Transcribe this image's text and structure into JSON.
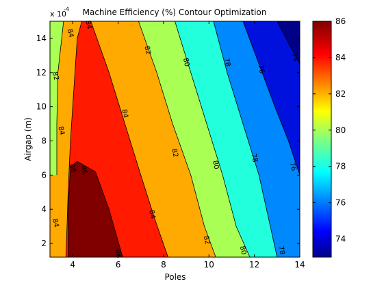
{
  "chart_data": {
    "type": "contour",
    "title": "Machine Efficiency (%) Contour Optimization",
    "xlabel": "Poles",
    "ylabel": "Airgap (m)",
    "y_exponent_label": "x 10",
    "y_exponent": "-4",
    "xlim": [
      3,
      14
    ],
    "ylim": [
      1.2,
      15
    ],
    "x_ticks": [
      "4",
      "6",
      "8",
      "10",
      "12",
      "14"
    ],
    "y_ticks": [
      "2",
      "4",
      "6",
      "8",
      "10",
      "12",
      "14"
    ],
    "colorbar": {
      "range": [
        73,
        86
      ],
      "ticks": [
        "74",
        "76",
        "78",
        "80",
        "82",
        "84",
        "86"
      ]
    },
    "levels": [
      {
        "value": 86,
        "color": "#800000"
      },
      {
        "value": 84,
        "color": "#ff1a00"
      },
      {
        "value": 82,
        "color": "#ffaa00"
      },
      {
        "value": 80,
        "color": "#aaff55"
      },
      {
        "value": 78,
        "color": "#22ffdd"
      },
      {
        "value": 76,
        "color": "#0088ff"
      },
      {
        "value": 74,
        "color": "#0010dd"
      },
      {
        "value": 73,
        "color": "#000088"
      }
    ],
    "contour_lines": [
      {
        "level": 84,
        "points": [
          [
            3.7,
            1.2
          ],
          [
            3.75,
            3
          ],
          [
            3.8,
            5
          ],
          [
            3.9,
            8
          ],
          [
            4,
            10
          ],
          [
            4.1,
            12
          ],
          [
            4.2,
            14
          ],
          [
            4.4,
            15
          ]
        ]
      },
      {
        "level": 84,
        "points": [
          [
            4.8,
            15
          ],
          [
            5.6,
            12
          ],
          [
            6.3,
            9
          ],
          [
            7,
            6
          ],
          [
            7.6,
            3.5
          ],
          [
            8.2,
            1.2
          ]
        ]
      },
      {
        "level": 86,
        "points": [
          [
            3.8,
            1.2
          ],
          [
            3.8,
            4
          ],
          [
            3.9,
            6.5
          ],
          [
            4.2,
            6.8
          ],
          [
            5,
            6.2
          ],
          [
            5.6,
            4
          ],
          [
            6.2,
            1.2
          ]
        ]
      },
      {
        "level": 82,
        "points": [
          [
            3.3,
            6
          ],
          [
            3.3,
            9
          ],
          [
            3.35,
            12
          ],
          [
            3.6,
            15
          ]
        ]
      },
      {
        "level": 82,
        "points": [
          [
            6.9,
            15
          ],
          [
            7.7,
            12
          ],
          [
            8.4,
            9
          ],
          [
            9.2,
            6
          ],
          [
            9.8,
            3
          ],
          [
            10.3,
            1.2
          ]
        ]
      },
      {
        "level": 80,
        "points": [
          [
            8.5,
            15
          ],
          [
            9.2,
            12
          ],
          [
            9.9,
            9
          ],
          [
            10.6,
            6
          ],
          [
            11.2,
            3
          ],
          [
            11.8,
            1.2
          ]
        ]
      },
      {
        "level": 78,
        "points": [
          [
            10.2,
            15
          ],
          [
            10.8,
            12
          ],
          [
            11.5,
            9
          ],
          [
            12.2,
            6
          ],
          [
            12.7,
            3
          ],
          [
            13,
            1.2
          ]
        ]
      },
      {
        "level": 76,
        "points": [
          [
            11.5,
            15
          ],
          [
            12.2,
            12.5
          ],
          [
            12.9,
            10
          ],
          [
            13.5,
            8
          ],
          [
            14,
            6
          ]
        ]
      },
      {
        "level": 74,
        "points": [
          [
            13,
            15
          ],
          [
            13.6,
            13.5
          ],
          [
            14,
            12.5
          ]
        ]
      }
    ],
    "contour_labels": [
      {
        "text": "84",
        "x": 3.9,
        "y": 14.3
      },
      {
        "text": "84",
        "x": 4.7,
        "y": 14.8
      },
      {
        "text": "82",
        "x": 3.25,
        "y": 11.8
      },
      {
        "text": "84",
        "x": 3.5,
        "y": 8.6
      },
      {
        "text": "84",
        "x": 6.3,
        "y": 9.6
      },
      {
        "text": "84",
        "x": 7.5,
        "y": 3.7
      },
      {
        "text": "84",
        "x": 3.25,
        "y": 3.2
      },
      {
        "text": "86",
        "x": 4,
        "y": 6.4
      },
      {
        "text": "86",
        "x": 4.5,
        "y": 6.3
      },
      {
        "text": "86",
        "x": 6,
        "y": 1.4
      },
      {
        "text": "82",
        "x": 7.3,
        "y": 13.3
      },
      {
        "text": "82",
        "x": 8.5,
        "y": 7.3
      },
      {
        "text": "82",
        "x": 9.9,
        "y": 2.2
      },
      {
        "text": "80",
        "x": 9,
        "y": 12.6
      },
      {
        "text": "80",
        "x": 10.3,
        "y": 6.6
      },
      {
        "text": "80",
        "x": 11.5,
        "y": 1.6
      },
      {
        "text": "78",
        "x": 10.8,
        "y": 12.6
      },
      {
        "text": "78",
        "x": 12,
        "y": 7
      },
      {
        "text": "78",
        "x": 13.2,
        "y": 1.6
      },
      {
        "text": "76",
        "x": 12.3,
        "y": 12.2
      },
      {
        "text": "76",
        "x": 13.7,
        "y": 6.5
      },
      {
        "text": "74",
        "x": 13.8,
        "y": 12.9
      }
    ],
    "grid": false
  }
}
